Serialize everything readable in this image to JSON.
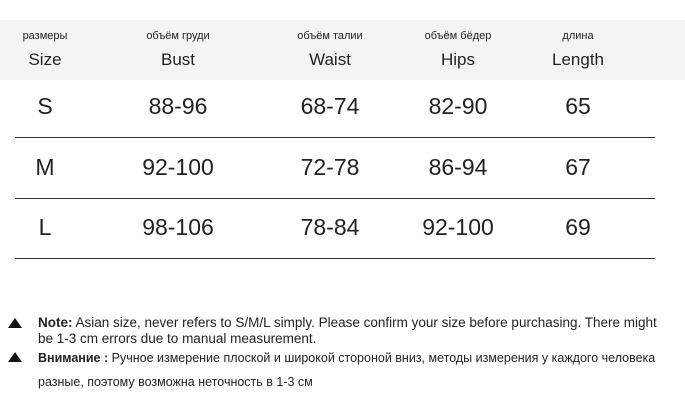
{
  "table": {
    "header": [
      [
        "размеры",
        "Size"
      ],
      [
        "объём груди",
        "Bust"
      ],
      [
        "объём талии",
        "Waist"
      ],
      [
        "объём бёдер",
        "Hips"
      ],
      [
        "длина",
        "Length"
      ]
    ],
    "rows": [
      [
        "S",
        "88-96",
        "68-74",
        "82-90",
        65
      ],
      [
        "M",
        "92-100",
        "72-78",
        "86-94",
        67
      ],
      [
        "L",
        "98-106",
        "78-84",
        "92-100",
        69
      ]
    ]
  },
  "notes": [
    {
      "label": "Note:",
      "text": "Asian size, never refers to S/M/L simply. Please confirm your size before purchasing. There might be 1-3 cm errors due to manual measurement."
    },
    {
      "label": "Внимание :",
      "text": "Ручное измерение плоской и широкой стороной вниз, методы измерения у каждого человека разные, поэтому возможна неточность в 1-3 см"
    }
  ]
}
